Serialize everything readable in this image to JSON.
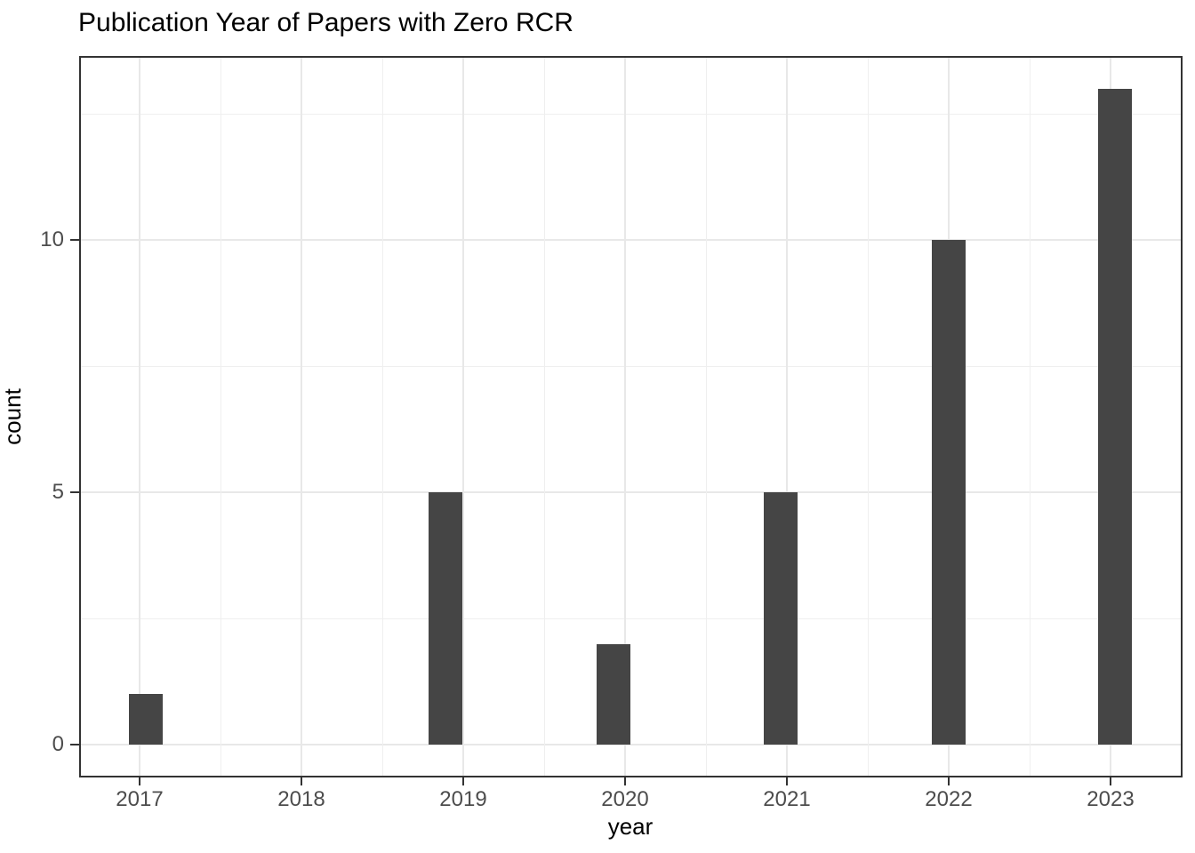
{
  "chart_data": {
    "type": "bar",
    "subtype": "histogram",
    "title": "Publication Year of Papers with Zero RCR",
    "xlabel": "year",
    "ylabel": "count",
    "categories": [
      "2017",
      "2018",
      "2019",
      "2020",
      "2021",
      "2022",
      "2023"
    ],
    "values": [
      1,
      0,
      5,
      2,
      5,
      10,
      13
    ],
    "x_tick_labels": [
      "2017",
      "2018",
      "2019",
      "2020",
      "2021",
      "2022",
      "2023"
    ],
    "y_ticks": [
      0,
      5,
      10
    ],
    "y_minor_ticks": [
      2.5,
      7.5,
      12.5
    ],
    "ylim": [
      -0.65,
      13.65
    ],
    "grid": "on",
    "legend": "none",
    "colors": {
      "bar_fill": "#454545",
      "grid_major": "#e8e8e8",
      "grid_minor": "#efefef",
      "panel_border": "#333333",
      "tick_mark": "#333333",
      "tick_label_text": "#4d4d4d",
      "title_text": "#000000",
      "background": "#ffffff"
    }
  }
}
